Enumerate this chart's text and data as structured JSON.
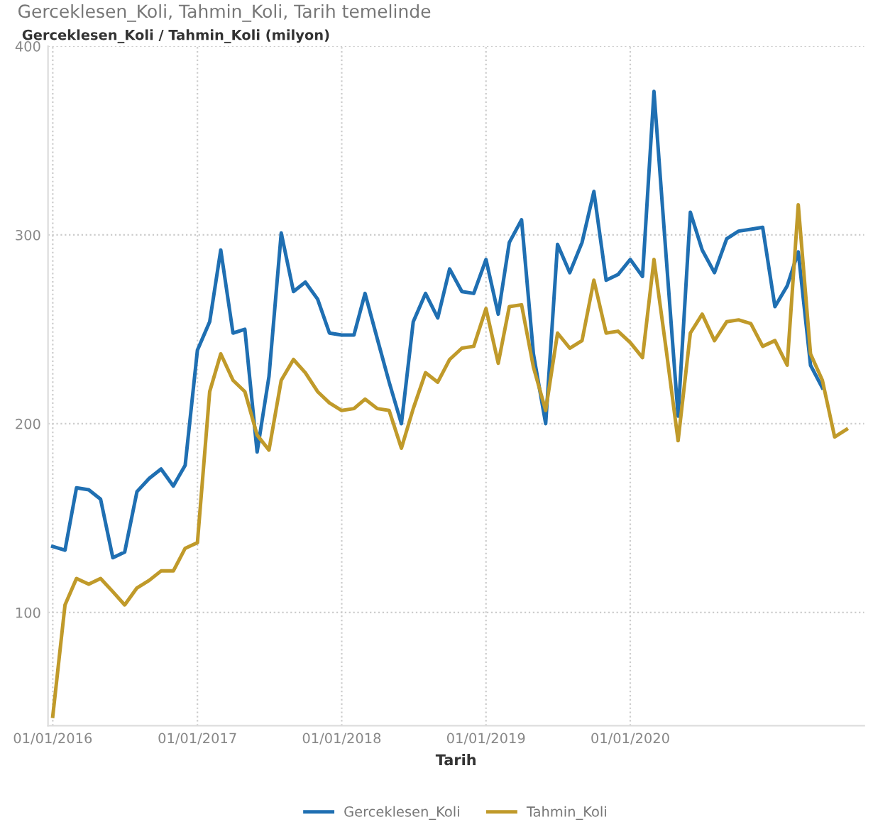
{
  "chart_data": {
    "type": "line",
    "title": "Gerceklesen_Koli, Tahmin_Koli, Tarih temelinde",
    "ylabel": "Gerceklesen_Koli / Tahmin_Koli (milyon)",
    "xlabel": "Tarih",
    "x": [
      "2016-01",
      "2016-02",
      "2016-03",
      "2016-04",
      "2016-05",
      "2016-06",
      "2016-07",
      "2016-08",
      "2016-09",
      "2016-10",
      "2016-11",
      "2016-12",
      "2017-01",
      "2017-02",
      "2017-03",
      "2017-04",
      "2017-05",
      "2017-06",
      "2017-07",
      "2017-08",
      "2017-09",
      "2017-10",
      "2017-11",
      "2017-12",
      "2018-01",
      "2018-02",
      "2018-03",
      "2018-04",
      "2018-05",
      "2018-06",
      "2018-07",
      "2018-08",
      "2018-09",
      "2018-10",
      "2018-11",
      "2018-12",
      "2019-01",
      "2019-02",
      "2019-03",
      "2019-04",
      "2019-05",
      "2019-06",
      "2019-07",
      "2019-08",
      "2019-09",
      "2019-10",
      "2019-11",
      "2019-12",
      "2020-01",
      "2020-02",
      "2020-03",
      "2020-04",
      "2020-05",
      "2020-06",
      "2020-07",
      "2020-08",
      "2020-09",
      "2020-10",
      "2020-11",
      "2020-12",
      "2021-01",
      "2021-02",
      "2021-03",
      "2021-04",
      "2021-05",
      "2021-06",
      "2021-07"
    ],
    "series": [
      {
        "name": "Gerceklesen_Koli",
        "color": "#1f6fb2",
        "values": [
          135,
          133,
          166,
          165,
          160,
          129,
          132,
          164,
          171,
          176,
          167,
          178,
          239,
          254,
          292,
          248,
          250,
          185,
          225,
          301,
          270,
          275,
          266,
          248,
          247,
          247,
          269,
          245,
          222,
          200,
          254,
          269,
          256,
          282,
          270,
          269,
          287,
          258,
          296,
          308,
          237,
          200,
          295,
          280,
          296,
          323,
          276,
          279,
          287,
          278,
          376,
          288,
          204,
          312,
          292,
          280,
          298,
          302,
          303,
          304,
          262,
          273,
          291,
          231,
          219,
          null,
          null
        ]
      },
      {
        "name": "Tahmin_Koli",
        "color": "#c09a2a",
        "values": [
          45,
          104,
          118,
          115,
          118,
          111,
          104,
          113,
          117,
          122,
          122,
          134,
          137,
          217,
          237,
          223,
          217,
          194,
          186,
          223,
          234,
          227,
          217,
          211,
          207,
          208,
          213,
          208,
          207,
          187,
          208,
          227,
          222,
          234,
          240,
          241,
          261,
          232,
          262,
          263,
          230,
          207,
          248,
          240,
          244,
          276,
          248,
          249,
          243,
          235,
          287,
          239,
          191,
          248,
          258,
          244,
          254,
          255,
          253,
          241,
          244,
          231,
          316,
          237,
          223,
          193,
          197
        ]
      }
    ],
    "xlim": [
      "2015-12-20",
      "2021-08-15"
    ],
    "xticks": [
      {
        "value": "2016-01-01",
        "label": "01/01/2016"
      },
      {
        "value": "2017-01-01",
        "label": "01/01/2017"
      },
      {
        "value": "2018-01-01",
        "label": "01/01/2018"
      },
      {
        "value": "2019-01-01",
        "label": "01/01/2019"
      },
      {
        "value": "2020-01-01",
        "label": "01/01/2020"
      }
    ],
    "ylim": [
      40,
      400
    ],
    "yticks": [
      100,
      200,
      300,
      400
    ],
    "grid": true,
    "legend": "bottom",
    "marker": "none",
    "line_style": "solid"
  }
}
